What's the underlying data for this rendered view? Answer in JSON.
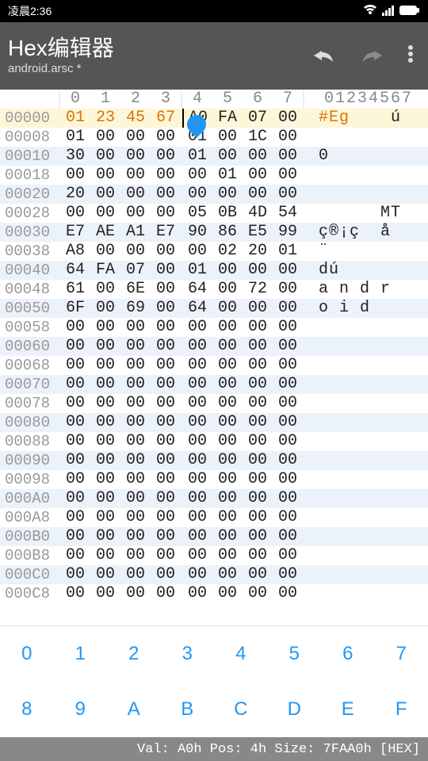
{
  "statusbar": {
    "time": "凌晨2:36"
  },
  "appbar": {
    "title": "Hex编辑器",
    "subtitle": "android.arsc *"
  },
  "columns": [
    "0",
    "1",
    "2",
    "3",
    "4",
    "5",
    "6",
    "7"
  ],
  "ascii_header": "01234567",
  "cursor": {
    "row": 0,
    "col": 4
  },
  "selected_bytes": 4,
  "rows": [
    {
      "offset": "00000",
      "bytes": [
        "01",
        "23",
        "45",
        "67",
        "A0",
        "FA",
        "07",
        "00"
      ],
      "ascii": {
        "plain": "    ú",
        "orange": "#Eg"
      }
    },
    {
      "offset": "00008",
      "bytes": [
        "01",
        "00",
        "00",
        "00",
        "01",
        "00",
        "1C",
        "00"
      ],
      "ascii": {
        "plain": ""
      }
    },
    {
      "offset": "00010",
      "bytes": [
        "30",
        "00",
        "00",
        "00",
        "01",
        "00",
        "00",
        "00"
      ],
      "ascii": {
        "plain": "0"
      }
    },
    {
      "offset": "00018",
      "bytes": [
        "00",
        "00",
        "00",
        "00",
        "00",
        "01",
        "00",
        "00"
      ],
      "ascii": {
        "plain": ""
      }
    },
    {
      "offset": "00020",
      "bytes": [
        "20",
        "00",
        "00",
        "00",
        "00",
        "00",
        "00",
        "00"
      ],
      "ascii": {
        "plain": ""
      }
    },
    {
      "offset": "00028",
      "bytes": [
        "00",
        "00",
        "00",
        "00",
        "05",
        "0B",
        "4D",
        "54"
      ],
      "ascii": {
        "plain": "      MT"
      }
    },
    {
      "offset": "00030",
      "bytes": [
        "E7",
        "AE",
        "A1",
        "E7",
        "90",
        "86",
        "E5",
        "99"
      ],
      "ascii": {
        "plain": "ç®¡ç  å "
      }
    },
    {
      "offset": "00038",
      "bytes": [
        "A8",
        "00",
        "00",
        "00",
        "00",
        "02",
        "20",
        "01"
      ],
      "ascii": {
        "plain": "¨"
      }
    },
    {
      "offset": "00040",
      "bytes": [
        "64",
        "FA",
        "07",
        "00",
        "01",
        "00",
        "00",
        "00"
      ],
      "ascii": {
        "plain": "dú"
      }
    },
    {
      "offset": "00048",
      "bytes": [
        "61",
        "00",
        "6E",
        "00",
        "64",
        "00",
        "72",
        "00"
      ],
      "ascii": {
        "plain": "a n d r"
      }
    },
    {
      "offset": "00050",
      "bytes": [
        "6F",
        "00",
        "69",
        "00",
        "64",
        "00",
        "00",
        "00"
      ],
      "ascii": {
        "plain": "o i d"
      }
    },
    {
      "offset": "00058",
      "bytes": [
        "00",
        "00",
        "00",
        "00",
        "00",
        "00",
        "00",
        "00"
      ],
      "ascii": {
        "plain": ""
      }
    },
    {
      "offset": "00060",
      "bytes": [
        "00",
        "00",
        "00",
        "00",
        "00",
        "00",
        "00",
        "00"
      ],
      "ascii": {
        "plain": ""
      }
    },
    {
      "offset": "00068",
      "bytes": [
        "00",
        "00",
        "00",
        "00",
        "00",
        "00",
        "00",
        "00"
      ],
      "ascii": {
        "plain": ""
      }
    },
    {
      "offset": "00070",
      "bytes": [
        "00",
        "00",
        "00",
        "00",
        "00",
        "00",
        "00",
        "00"
      ],
      "ascii": {
        "plain": ""
      }
    },
    {
      "offset": "00078",
      "bytes": [
        "00",
        "00",
        "00",
        "00",
        "00",
        "00",
        "00",
        "00"
      ],
      "ascii": {
        "plain": ""
      }
    },
    {
      "offset": "00080",
      "bytes": [
        "00",
        "00",
        "00",
        "00",
        "00",
        "00",
        "00",
        "00"
      ],
      "ascii": {
        "plain": ""
      }
    },
    {
      "offset": "00088",
      "bytes": [
        "00",
        "00",
        "00",
        "00",
        "00",
        "00",
        "00",
        "00"
      ],
      "ascii": {
        "plain": ""
      }
    },
    {
      "offset": "00090",
      "bytes": [
        "00",
        "00",
        "00",
        "00",
        "00",
        "00",
        "00",
        "00"
      ],
      "ascii": {
        "plain": ""
      }
    },
    {
      "offset": "00098",
      "bytes": [
        "00",
        "00",
        "00",
        "00",
        "00",
        "00",
        "00",
        "00"
      ],
      "ascii": {
        "plain": ""
      }
    },
    {
      "offset": "000A0",
      "bytes": [
        "00",
        "00",
        "00",
        "00",
        "00",
        "00",
        "00",
        "00"
      ],
      "ascii": {
        "plain": ""
      }
    },
    {
      "offset": "000A8",
      "bytes": [
        "00",
        "00",
        "00",
        "00",
        "00",
        "00",
        "00",
        "00"
      ],
      "ascii": {
        "plain": ""
      }
    },
    {
      "offset": "000B0",
      "bytes": [
        "00",
        "00",
        "00",
        "00",
        "00",
        "00",
        "00",
        "00"
      ],
      "ascii": {
        "plain": ""
      }
    },
    {
      "offset": "000B8",
      "bytes": [
        "00",
        "00",
        "00",
        "00",
        "00",
        "00",
        "00",
        "00"
      ],
      "ascii": {
        "plain": ""
      }
    },
    {
      "offset": "000C0",
      "bytes": [
        "00",
        "00",
        "00",
        "00",
        "00",
        "00",
        "00",
        "00"
      ],
      "ascii": {
        "plain": ""
      }
    },
    {
      "offset": "000C8",
      "bytes": [
        "00",
        "00",
        "00",
        "00",
        "00",
        "00",
        "00",
        "00"
      ],
      "ascii": {
        "plain": ""
      }
    }
  ],
  "keypad": [
    [
      "0",
      "1",
      "2",
      "3",
      "4",
      "5",
      "6",
      "7"
    ],
    [
      "8",
      "9",
      "A",
      "B",
      "C",
      "D",
      "E",
      "F"
    ]
  ],
  "statusline": "Val: A0h  Pos: 4h  Size: 7FAA0h [HEX]",
  "colors": {
    "statusbar_bg": "#000000",
    "appbar_bg": "#555555",
    "selected_text": "#d97500",
    "even_row_bg": "#ecf2fa",
    "cursor_color": "#2196f3",
    "key_color": "#2196f3",
    "statusline_bg": "#888888",
    "offset_color": "#999999"
  }
}
